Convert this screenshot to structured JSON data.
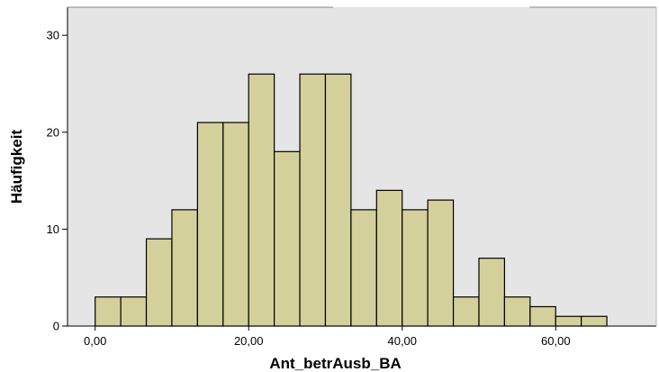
{
  "chart_data": {
    "type": "bar",
    "title": "",
    "xlabel": "Ant_betrAusb_BA",
    "ylabel": "Häufigkeit",
    "bin_width": 3.333,
    "bin_start": 0,
    "values": [
      3,
      3,
      9,
      12,
      21,
      21,
      26,
      18,
      26,
      26,
      12,
      14,
      12,
      13,
      3,
      7,
      3,
      2,
      1,
      1
    ],
    "xlim": [
      -3.6,
      73.1
    ],
    "ylim": [
      0,
      32.9
    ],
    "x_ticks": [
      {
        "value": 0,
        "label": "0,00"
      },
      {
        "value": 20,
        "label": "20,00"
      },
      {
        "value": 40,
        "label": "40,00"
      },
      {
        "value": 60,
        "label": "60,00"
      }
    ],
    "y_ticks": [
      {
        "value": 0,
        "label": "0"
      },
      {
        "value": 10,
        "label": "10"
      },
      {
        "value": 20,
        "label": "20"
      },
      {
        "value": 30,
        "label": "30"
      }
    ],
    "grid": false,
    "colors": {
      "bar_fill": "#d4d09b",
      "bar_stroke": "#000000",
      "plot_bg": "#e5e5e5"
    }
  }
}
